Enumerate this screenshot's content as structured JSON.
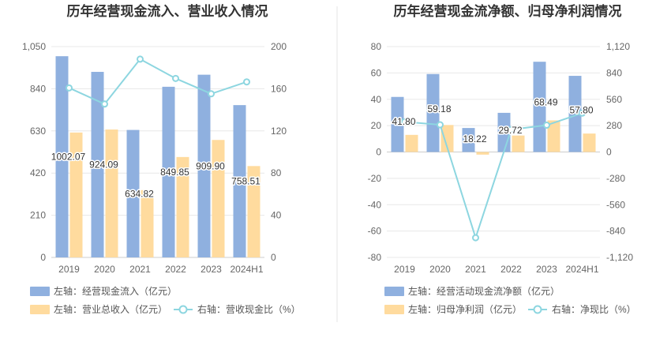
{
  "colors": {
    "bar_primary": "#8FB0DF",
    "bar_secondary": "#FFDB9E",
    "line": "#8DD6E0",
    "grid": "#E8E8E8",
    "axis": "#CCCCCC",
    "divider": "#E6E6E6"
  },
  "chart_data": [
    {
      "type": "bar",
      "title": "历年经营现金流入、营业收入情况",
      "categories": [
        "2019",
        "2020",
        "2021",
        "2022",
        "2023",
        "2024H1"
      ],
      "left_axis": {
        "ylim": [
          0,
          1050
        ],
        "ticks": [
          "0",
          "210",
          "420",
          "630",
          "840",
          "1,050"
        ]
      },
      "right_axis": {
        "ylim": [
          0,
          200
        ],
        "ticks": [
          "0",
          "40",
          "80",
          "120",
          "160",
          "200"
        ]
      },
      "series": [
        {
          "name": "左轴：经营现金流入（亿元）",
          "kind": "bar",
          "axis": "left",
          "values": [
            1002.07,
            924.09,
            634.82,
            849.85,
            909.9,
            758.51
          ],
          "labels": [
            "1002.07",
            "924.09",
            "634.82",
            "849.85",
            "909.90",
            "758.51"
          ]
        },
        {
          "name": "左轴：营业总收入（亿元）",
          "kind": "bar",
          "axis": "left",
          "values": [
            622,
            637,
            335,
            500,
            585,
            455
          ]
        },
        {
          "name": "右轴：营收现金比（%）",
          "kind": "line",
          "axis": "right",
          "values": [
            160.8,
            145.5,
            188.1,
            169.8,
            155.2,
            166.5
          ]
        }
      ],
      "legend": "bottom-left"
    },
    {
      "type": "bar",
      "title": "历年经营现金流净额、归母净利润情况",
      "categories": [
        "2019",
        "2020",
        "2021",
        "2022",
        "2023",
        "2024H1"
      ],
      "left_axis": {
        "ylim": [
          -80,
          80
        ],
        "ticks": [
          "-80",
          "-60",
          "-40",
          "-20",
          "0",
          "20",
          "40",
          "60",
          "80"
        ]
      },
      "right_axis": {
        "ylim": [
          -1120,
          1120
        ],
        "ticks": [
          "-1,120",
          "-840",
          "-560",
          "-280",
          "0",
          "280",
          "560",
          "840",
          "1,120"
        ]
      },
      "series": [
        {
          "name": "左轴：经营活动现金流净额（亿元）",
          "kind": "bar",
          "axis": "left",
          "values": [
            41.8,
            59.18,
            18.22,
            29.72,
            68.49,
            57.8
          ],
          "labels": [
            "41.80",
            "59.18",
            "18.22",
            "29.72",
            "68.49",
            "57.80"
          ]
        },
        {
          "name": "左轴：归母净利润（亿元）",
          "kind": "bar",
          "axis": "left",
          "values": [
            13,
            20.5,
            -2,
            12.5,
            24,
            14
          ]
        },
        {
          "name": "右轴：净现比（%）",
          "kind": "line",
          "axis": "right",
          "values": [
            321,
            289,
            -911,
            238,
            285,
            413
          ]
        }
      ],
      "legend": "bottom-left"
    }
  ]
}
